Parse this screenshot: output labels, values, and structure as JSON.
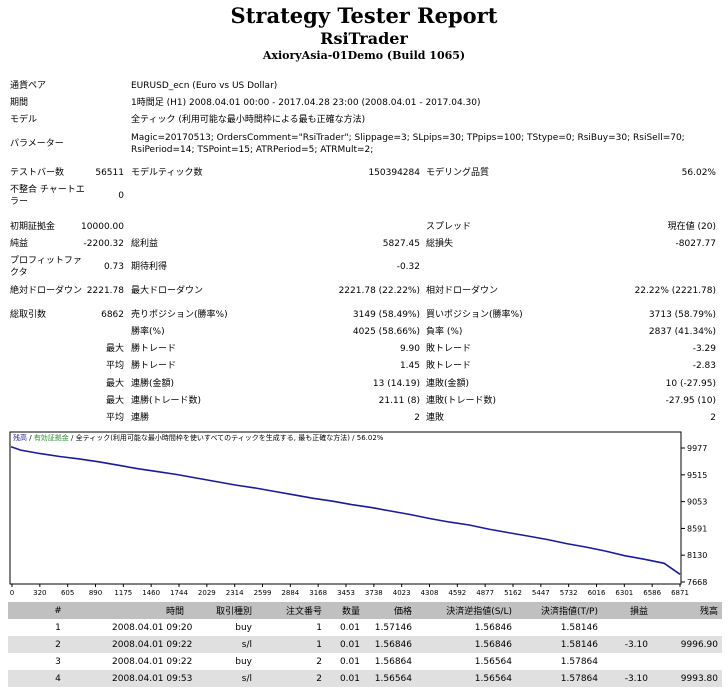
{
  "header": {
    "title": "Strategy Tester Report",
    "expert": "RsiTrader",
    "server": "AxioryAsia-01Demo (Build 1065)"
  },
  "settings": [
    {
      "label": "通貨ペア",
      "value": "EURUSD_ecn (Euro vs US Dollar)"
    },
    {
      "label": "期間",
      "value": "1時間足 (H1) 2008.04.01 00:00 - 2017.04.28 23:00 (2008.04.01 - 2017.04.30)"
    },
    {
      "label": "モデル",
      "value": "全ティック (利用可能な最小時間枠による最も正確な方法)"
    },
    {
      "label": "パラメーター",
      "value": "Magic=20170513; OrdersComment=\"RsiTrader\"; Slippage=3; SLpips=30; TPpips=100; TStype=0; RsiBuy=30; RsiSell=70; RsiPeriod=14; TSPoint=15; ATRPeriod=5; ATRMult=2;"
    }
  ],
  "stats": {
    "bars_label": "テストバー数",
    "bars": "56511",
    "ticks_label": "モデルティック数",
    "ticks": "150394284",
    "quality_label": "モデリング品質",
    "quality": "56.02%",
    "mismatch_label": "不整合 チャートエラー",
    "mismatch": "0",
    "deposit_label": "初期証拠金",
    "deposit": "10000.00",
    "spread_label": "スプレッド",
    "spread": "現在値 (20)",
    "net_label": "純益",
    "net": "-2200.32",
    "gross_profit_label": "総利益",
    "gross_profit": "5827.45",
    "gross_loss_label": "総損失",
    "gross_loss": "-8027.77",
    "pf_label": "プロフィットファクタ",
    "pf": "0.73",
    "payoff_label": "期待利得",
    "payoff": "-0.32",
    "abs_dd_label": "絶対ドローダウン",
    "abs_dd": "2221.78",
    "max_dd_label": "最大ドローダウン",
    "max_dd": "2221.78 (22.22%)",
    "rel_dd_label": "相対ドローダウン",
    "rel_dd": "22.22% (2221.78)",
    "trades_label": "総取引数",
    "trades": "6862",
    "short_label": "売りポジション(勝率%)",
    "short": "3149 (58.49%)",
    "long_label": "買いポジション(勝率%)",
    "long": "3713 (58.79%)",
    "win_label": "勝率(%)",
    "win": "4025 (58.66%)",
    "loss_label": "負率 (%)",
    "loss": "2837 (41.34%)",
    "max1": "最大",
    "largest_win_label": "勝トレード",
    "largest_win": "9.90",
    "largest_loss_label": "敗トレード",
    "largest_loss": "-3.29",
    "avg1": "平均",
    "avg_win_label": "勝トレード",
    "avg_win": "1.45",
    "avg_loss_label": "敗トレード",
    "avg_loss": "-2.83",
    "max2": "最大",
    "cons_wins_label": "連勝(金額)",
    "cons_wins": "13 (14.19)",
    "cons_losses_label": "連敗(金額)",
    "cons_losses": "10 (-27.95)",
    "max3": "最大",
    "cons_profit_label": "連勝(トレード数)",
    "cons_profit": "21.11 (8)",
    "cons_loss_label": "連敗(トレード数)",
    "cons_loss": "-27.95 (10)",
    "avg2": "平均",
    "avg_cons_wins_label": "連勝",
    "avg_cons_wins": "2",
    "avg_cons_losses_label": "連敗",
    "avg_cons_losses": "2"
  },
  "chart_caption": {
    "balance": "残高",
    "sep1": " / ",
    "equity": "有効証拠金",
    "sep2": " / ",
    "model": "全ティック(利用可能な最小時間枠を使いすべてのティックを生成する, 最も正確な方法)",
    "quality": " / 56.02%"
  },
  "chart_data": {
    "type": "line",
    "x_ticks": [
      "0",
      "320",
      "605",
      "890",
      "1175",
      "1460",
      "1744",
      "2029",
      "2314",
      "2599",
      "2884",
      "3168",
      "3453",
      "3738",
      "4023",
      "4308",
      "4592",
      "4877",
      "5162",
      "5447",
      "5732",
      "6016",
      "6301",
      "6586",
      "6871"
    ],
    "y_ticks": [
      "9977",
      "9515",
      "9053",
      "8591",
      "8130",
      "7668"
    ],
    "xlim": [
      0,
      6862
    ],
    "ylim": [
      7668,
      10100
    ],
    "colors": {
      "balance": "#1a1aa0",
      "equity": "#2f8f2f"
    },
    "series": [
      {
        "name": "残高",
        "x": [
          0,
          100,
          300,
          500,
          700,
          900,
          1100,
          1300,
          1500,
          1700,
          1900,
          2100,
          2300,
          2500,
          2700,
          2900,
          3100,
          3300,
          3500,
          3700,
          3900,
          4100,
          4300,
          4500,
          4700,
          4900,
          5100,
          5300,
          5500,
          5700,
          5900,
          6100,
          6300,
          6500,
          6700,
          6862
        ],
        "y": [
          9997,
          9940,
          9880,
          9830,
          9790,
          9740,
          9680,
          9620,
          9570,
          9520,
          9460,
          9400,
          9340,
          9290,
          9230,
          9170,
          9110,
          9060,
          9000,
          8950,
          8890,
          8830,
          8760,
          8700,
          8650,
          8580,
          8520,
          8460,
          8400,
          8330,
          8270,
          8200,
          8120,
          8060,
          7990,
          7800
        ]
      }
    ]
  },
  "trades_table": {
    "headers": [
      "#",
      "時間",
      "取引種別",
      "注文番号",
      "数量",
      "価格",
      "決済逆指値(S/L)",
      "決済指値(T/P)",
      "損益",
      "残高"
    ],
    "rows": [
      [
        "1",
        "2008.04.01 09:20",
        "buy",
        "1",
        "0.01",
        "1.57146",
        "1.56846",
        "1.58146",
        "",
        ""
      ],
      [
        "2",
        "2008.04.01 09:22",
        "s/l",
        "1",
        "0.01",
        "1.56846",
        "1.56846",
        "1.58146",
        "-3.10",
        "9996.90"
      ],
      [
        "3",
        "2008.04.01 09:22",
        "buy",
        "2",
        "0.01",
        "1.56864",
        "1.56564",
        "1.57864",
        "",
        ""
      ],
      [
        "4",
        "2008.04.01 09:53",
        "s/l",
        "2",
        "0.01",
        "1.56564",
        "1.56564",
        "1.57864",
        "-3.10",
        "9993.80"
      ]
    ]
  }
}
